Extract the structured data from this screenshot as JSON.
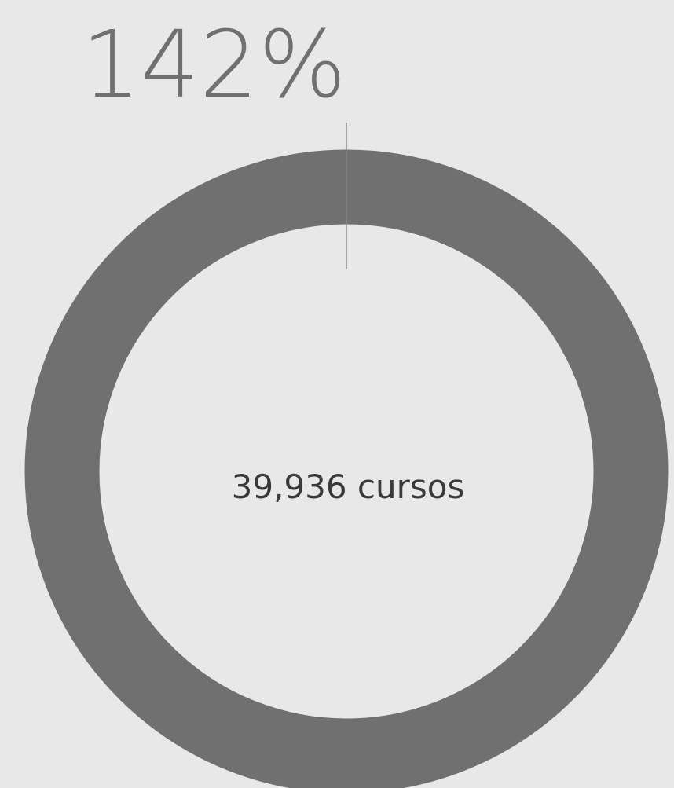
{
  "chart_data": {
    "type": "gauge",
    "values": [
      142
    ],
    "value_labels": [
      "142%"
    ],
    "center_label": "39,936 cursos",
    "ylim": [
      0,
      100
    ],
    "color": "#707070"
  }
}
